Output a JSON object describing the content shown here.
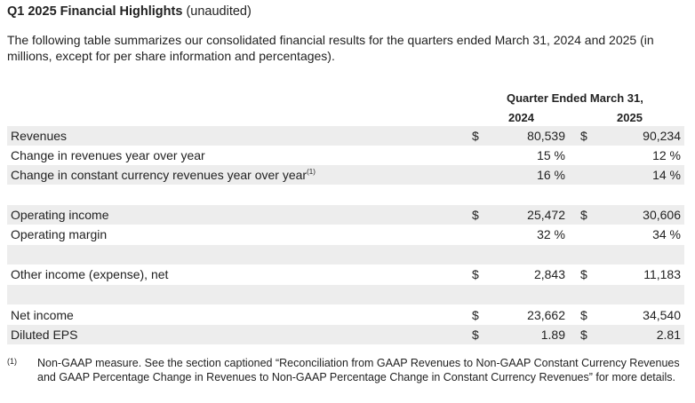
{
  "title": {
    "bold": "Q1 2025 Financial Highlights",
    "normal": "(unaudited)"
  },
  "intro": "The following table summarizes our consolidated financial results for the quarters ended March 31, 2024 and 2025 (in millions, except for per share information and percentages).",
  "table": {
    "period_header": "Quarter Ended March 31,",
    "years": [
      "2024",
      "2025"
    ],
    "rows": [
      {
        "label": "Revenues",
        "cur1": "$",
        "v1": "80,539",
        "cur2": "$",
        "v2": "90,234"
      },
      {
        "label": "Change in revenues year over year",
        "cur1": "",
        "v1": "15 %",
        "cur2": "",
        "v2": "12 %"
      },
      {
        "label": "Change in constant currency revenues year over year",
        "sup": "(1)",
        "cur1": "",
        "v1": "16 %",
        "cur2": "",
        "v2": "14 %"
      },
      {
        "label": "",
        "cur1": "",
        "v1": "",
        "cur2": "",
        "v2": ""
      },
      {
        "label": "Operating income",
        "cur1": "$",
        "v1": "25,472",
        "cur2": "$",
        "v2": "30,606"
      },
      {
        "label": "Operating margin",
        "cur1": "",
        "v1": "32 %",
        "cur2": "",
        "v2": "34 %"
      },
      {
        "label": "",
        "cur1": "",
        "v1": "",
        "cur2": "",
        "v2": ""
      },
      {
        "label": "Other income (expense), net",
        "cur1": "$",
        "v1": "2,843",
        "cur2": "$",
        "v2": "11,183"
      },
      {
        "label": "",
        "cur1": "",
        "v1": "",
        "cur2": "",
        "v2": ""
      },
      {
        "label": "Net income",
        "cur1": "$",
        "v1": "23,662",
        "cur2": "$",
        "v2": "34,540"
      },
      {
        "label": "Diluted EPS",
        "cur1": "$",
        "v1": "1.89",
        "cur2": "$",
        "v2": "2.81"
      }
    ]
  },
  "footnote": {
    "mark": "(1)",
    "text": "Non-GAAP measure. See the section captioned “Reconciliation from GAAP Revenues to Non-GAAP Constant Currency Revenues and GAAP Percentage Change in Revenues to Non-GAAP Percentage Change in Constant Currency Revenues” for more details."
  }
}
